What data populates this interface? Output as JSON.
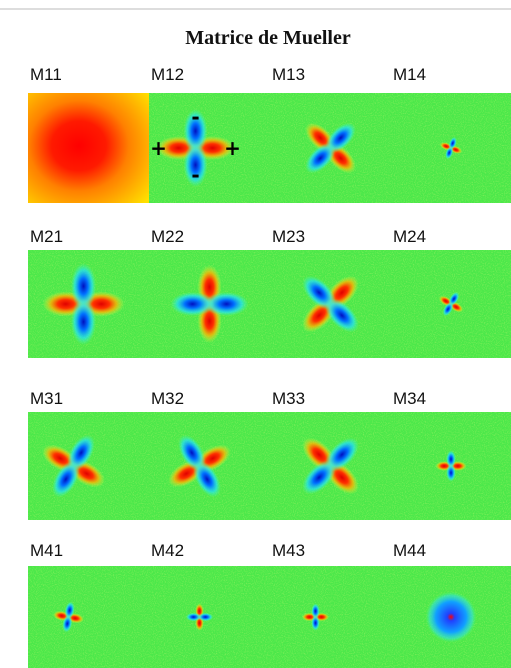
{
  "title": "Matrice de Mueller",
  "matrix": {
    "rows": [
      [
        "M11",
        "M12",
        "M13",
        "M14"
      ],
      [
        "M21",
        "M22",
        "M23",
        "M24"
      ],
      [
        "M31",
        "M32",
        "M33",
        "M34"
      ],
      [
        "M41",
        "M42",
        "M43",
        "M44"
      ]
    ]
  },
  "annotations": {
    "minus_top": "-",
    "plus_left": "+",
    "plus_right": "+",
    "minus_bottom": "-"
  }
}
